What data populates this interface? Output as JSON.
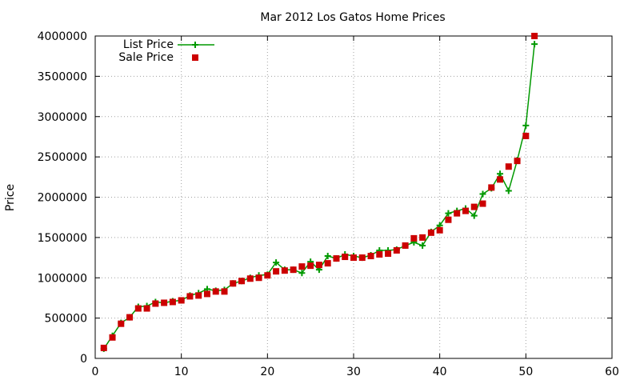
{
  "chart_data": {
    "type": "scatter",
    "title": "Mar 2012 Los Gatos Home Prices",
    "xlabel": "",
    "ylabel": "Price",
    "xlim": [
      0,
      60
    ],
    "ylim": [
      0,
      4000000
    ],
    "xticks": [
      "0",
      "10",
      "20",
      "30",
      "40",
      "50",
      "60"
    ],
    "yticks": [
      "0",
      "500000",
      "1000000",
      "1500000",
      "2000000",
      "2500000",
      "3000000",
      "3500000",
      "4000000"
    ],
    "grid": true,
    "legend_position": "top-left",
    "series": [
      {
        "name": "List Price",
        "style": "line with plus markers",
        "color": "#009900",
        "x": [
          1,
          2,
          3,
          4,
          5,
          6,
          7,
          8,
          9,
          10,
          11,
          12,
          13,
          14,
          15,
          16,
          17,
          18,
          19,
          20,
          21,
          22,
          23,
          24,
          25,
          26,
          27,
          28,
          29,
          30,
          31,
          32,
          33,
          34,
          35,
          36,
          37,
          38,
          39,
          40,
          41,
          42,
          43,
          44,
          45,
          46,
          47,
          48,
          49,
          50,
          51
        ],
        "values": [
          120000,
          280000,
          440000,
          510000,
          640000,
          650000,
          700000,
          690000,
          710000,
          720000,
          780000,
          810000,
          860000,
          840000,
          850000,
          930000,
          960000,
          1000000,
          1030000,
          1040000,
          1190000,
          1100000,
          1100000,
          1060000,
          1200000,
          1100000,
          1270000,
          1240000,
          1290000,
          1270000,
          1250000,
          1280000,
          1340000,
          1340000,
          1350000,
          1400000,
          1440000,
          1400000,
          1570000,
          1650000,
          1800000,
          1830000,
          1860000,
          1770000,
          2040000,
          2110000,
          2290000,
          2080000,
          2460000,
          2890000,
          3900000
        ]
      },
      {
        "name": "Sale Price",
        "style": "square markers",
        "color": "#cc0000",
        "x": [
          1,
          2,
          3,
          4,
          5,
          6,
          7,
          8,
          9,
          10,
          11,
          12,
          13,
          14,
          15,
          16,
          17,
          18,
          19,
          20,
          21,
          22,
          23,
          24,
          25,
          26,
          27,
          28,
          29,
          30,
          31,
          32,
          33,
          34,
          35,
          36,
          37,
          38,
          39,
          40,
          41,
          42,
          43,
          44,
          45,
          46,
          47,
          48,
          49,
          50,
          51
        ],
        "values": [
          130000,
          260000,
          430000,
          510000,
          620000,
          620000,
          680000,
          690000,
          700000,
          720000,
          770000,
          780000,
          800000,
          830000,
          830000,
          930000,
          960000,
          990000,
          1000000,
          1030000,
          1080000,
          1090000,
          1100000,
          1140000,
          1150000,
          1160000,
          1180000,
          1240000,
          1260000,
          1250000,
          1250000,
          1270000,
          1290000,
          1300000,
          1340000,
          1400000,
          1490000,
          1500000,
          1560000,
          1590000,
          1720000,
          1800000,
          1830000,
          1880000,
          1920000,
          2120000,
          2220000,
          2380000,
          2450000,
          2760000,
          4000000
        ]
      }
    ]
  }
}
